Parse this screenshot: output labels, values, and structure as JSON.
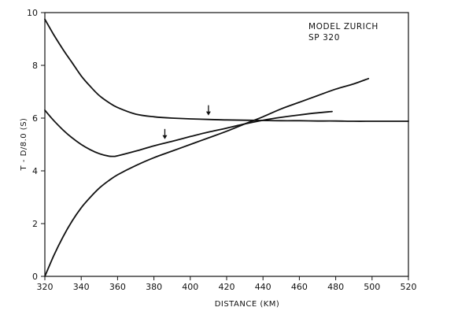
{
  "chart_data": {
    "type": "line",
    "title": "",
    "annotation": [
      "MODEL ZURICH",
      "SP 320"
    ],
    "xlabel": "DISTANCE (KM)",
    "ylabel": "T - D/8.0 (S)",
    "xlim": [
      320,
      520
    ],
    "ylim": [
      0,
      10
    ],
    "xticks": [
      320,
      340,
      360,
      380,
      400,
      420,
      440,
      460,
      480,
      500,
      520
    ],
    "yticks": [
      0,
      2,
      4,
      6,
      8,
      10
    ],
    "grid": false,
    "legend": "none",
    "line_color": "#111111",
    "series": [
      {
        "x": [
          320,
          325,
          330,
          335,
          340,
          345,
          350,
          355,
          360,
          370,
          380,
          390,
          400,
          410,
          420,
          430,
          440,
          450,
          460,
          470,
          480,
          490,
          500,
          510,
          520
        ],
        "y": [
          9.75,
          9.15,
          8.6,
          8.1,
          7.6,
          7.2,
          6.85,
          6.6,
          6.4,
          6.15,
          6.05,
          6.0,
          5.97,
          5.95,
          5.93,
          5.92,
          5.91,
          5.9,
          5.9,
          5.89,
          5.89,
          5.88,
          5.88,
          5.88,
          5.88
        ]
      },
      {
        "x": [
          320,
          325,
          330,
          335,
          340,
          345,
          350,
          355,
          358,
          360,
          370,
          380,
          390,
          400,
          410,
          420,
          430,
          440,
          450,
          460,
          470,
          478
        ],
        "y": [
          6.3,
          5.9,
          5.55,
          5.25,
          5.0,
          4.8,
          4.65,
          4.56,
          4.55,
          4.57,
          4.75,
          4.95,
          5.12,
          5.3,
          5.47,
          5.62,
          5.78,
          5.92,
          6.03,
          6.12,
          6.2,
          6.25
        ]
      },
      {
        "x": [
          320,
          325,
          330,
          335,
          340,
          345,
          350,
          355,
          360,
          370,
          380,
          390,
          400,
          410,
          420,
          430,
          440,
          450,
          460,
          470,
          480,
          490,
          498
        ],
        "y": [
          0,
          0.8,
          1.5,
          2.1,
          2.6,
          3.0,
          3.35,
          3.62,
          3.85,
          4.2,
          4.5,
          4.75,
          5.0,
          5.25,
          5.5,
          5.78,
          6.05,
          6.35,
          6.6,
          6.85,
          7.1,
          7.3,
          7.5
        ]
      }
    ],
    "arrows": [
      {
        "x": 410,
        "y": 6.1
      },
      {
        "x": 386,
        "y": 5.2
      }
    ]
  }
}
